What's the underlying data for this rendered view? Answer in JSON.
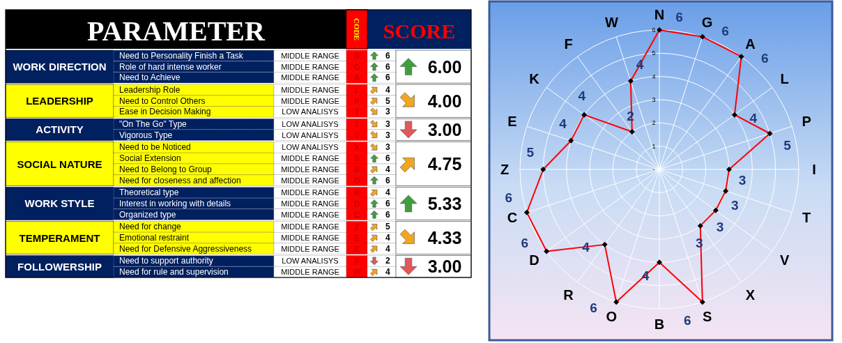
{
  "chart_data": [
    {
      "type": "other",
      "title": "PARAMETER",
      "xlabel": "CODE",
      "ylabel": "SCORE",
      "data_labels": true,
      "categories": [
        "Need to Personality Finish a Task",
        "Role of hard intense worker",
        "Need to Achieve",
        "Leadership Role",
        "Need to Control Others",
        "Ease in Decision Making",
        "\"On The Go\" Type",
        "Vigorous Type",
        "Need to be Noticed",
        "Social Extension",
        "Need to Belong to Group",
        "Need for closeness and affection",
        "Theoretical type",
        "Interest  in working with details",
        "Organized type",
        "Need for change",
        "Emotional restraint",
        "Need for Defensive Aggressiveness",
        "Need to support authority",
        "Need for rule and supervision"
      ],
      "y2_categories": [
        "MIDDLE RANGE",
        "MIDDLE RANGE",
        "MIDDLE RANGE",
        "MIDDLE RANGE",
        "MIDDLE RANGE",
        "LOW ANALISYS",
        "LOW ANALISYS",
        "LOW ANALISYS",
        "LOW ANALISYS",
        "MIDDLE RANGE",
        "MIDDLE RANGE",
        "MIDDLE RANGE",
        "MIDDLE RANGE",
        "MIDDLE RANGE",
        "MIDDLE RANGE",
        "MIDDLE RANGE",
        "MIDDLE RANGE",
        "MIDDLE RANGE",
        "LOW ANALISYS",
        "MIDDLE RANGE"
      ],
      "series": [
        {
          "values": [
            6,
            6,
            6,
            null,
            null,
            null,
            null,
            null,
            null,
            null,
            null,
            null,
            null,
            null,
            null,
            null,
            null,
            null,
            null,
            null
          ]
        },
        {
          "values": [
            null,
            null,
            null,
            4,
            5,
            3,
            null,
            null,
            null,
            null,
            null,
            null,
            null,
            null,
            null,
            null,
            null,
            null,
            null,
            null
          ]
        },
        {
          "values": [
            null,
            null,
            null,
            null,
            null,
            null,
            3,
            3,
            null,
            null,
            null,
            null,
            null,
            null,
            null,
            null,
            null,
            null,
            null,
            null
          ]
        },
        {
          "values": [
            null,
            null,
            null,
            null,
            null,
            null,
            null,
            null,
            3,
            6,
            4,
            6,
            null,
            null,
            null,
            null,
            null,
            null,
            null,
            null
          ]
        },
        {
          "values": [
            null,
            null,
            null,
            null,
            null,
            null,
            null,
            null,
            null,
            null,
            null,
            null,
            4,
            6,
            6,
            null,
            null,
            null,
            null,
            null
          ]
        },
        {
          "values": [
            null,
            null,
            null,
            null,
            null,
            null,
            null,
            null,
            null,
            null,
            null,
            null,
            null,
            null,
            null,
            5,
            4,
            4,
            null,
            null
          ]
        },
        {
          "values": [
            null,
            null,
            null,
            null,
            null,
            null,
            null,
            null,
            null,
            null,
            null,
            null,
            null,
            null,
            null,
            null,
            null,
            null,
            2,
            4
          ]
        }
      ],
      "annotations": [
        "N",
        "G",
        "A",
        "L",
        "P",
        "I",
        "T",
        "V",
        "X",
        "S",
        "B",
        "O",
        "R",
        "D",
        "C",
        "Z",
        "E",
        "K",
        "F",
        "W",
        "WORK DIRECTION",
        "LEADERSHIP",
        "ACTIVITY",
        "SOCIAL NATURE",
        "WORK STYLE",
        "TEMPERAMENT",
        "FOLLOWERSHIP",
        "6.00",
        "4.00",
        "3.00",
        "4.75",
        "5.33",
        "4.33",
        "3.00"
      ]
    },
    {
      "type": "radar",
      "categories": [
        "N",
        "G",
        "A",
        "L",
        "P",
        "I",
        "T",
        "V",
        "X",
        "S",
        "B",
        "O",
        "R",
        "D",
        "C",
        "Z",
        "E",
        "K",
        "F",
        "W"
      ],
      "series": [
        {
          "color": "#ff0000",
          "values": [
            6,
            6,
            6,
            4,
            5,
            3,
            3,
            3,
            3,
            6,
            4,
            6,
            4,
            6,
            6,
            5,
            4,
            4,
            2,
            4
          ]
        }
      ],
      "ylim": [
        0,
        6
      ],
      "yticks": [
        {
          "value": 0,
          "label": "-"
        },
        1,
        2,
        3,
        4,
        5,
        6
      ],
      "data_labels": true,
      "marker": "diamond",
      "grid": true
    }
  ]
}
